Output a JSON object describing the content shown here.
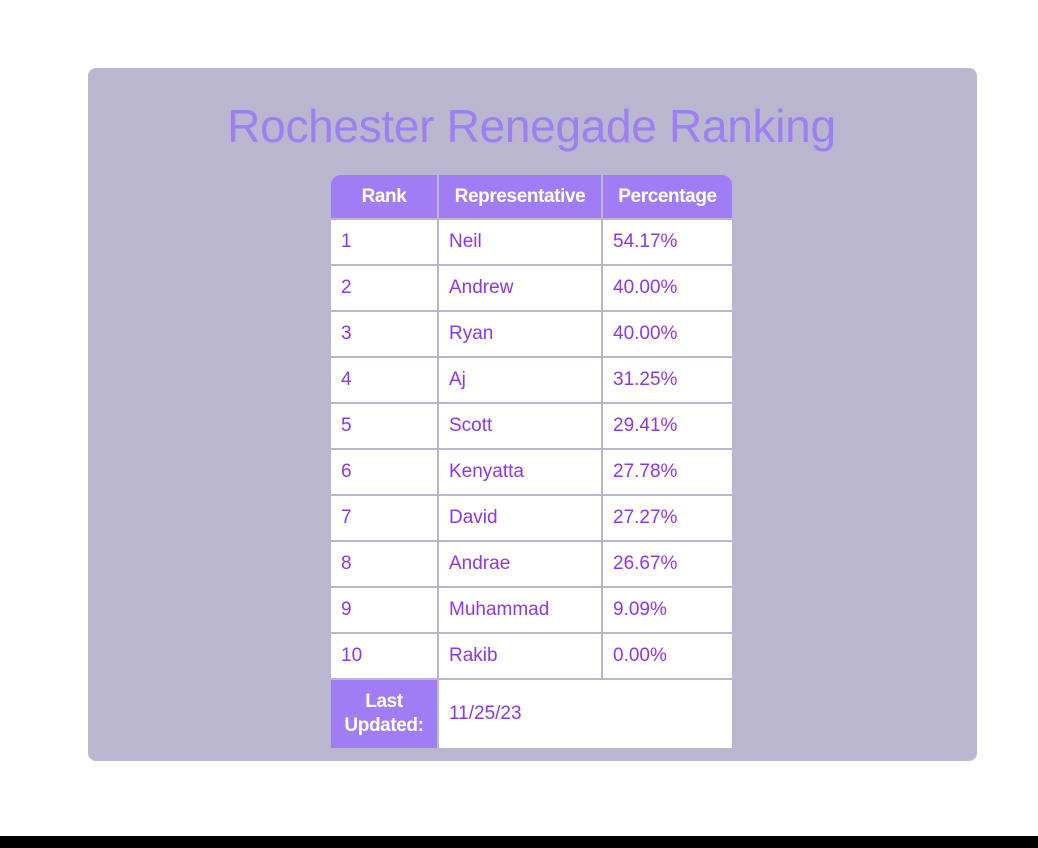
{
  "title": "Rochester Renegade Ranking",
  "table": {
    "headers": {
      "rank": "Rank",
      "representative": "Representative",
      "percentage": "Percentage"
    },
    "rows": [
      {
        "rank": "1",
        "representative": "Neil",
        "percentage": "54.17%"
      },
      {
        "rank": "2",
        "representative": "Andrew",
        "percentage": "40.00%"
      },
      {
        "rank": "3",
        "representative": "Ryan",
        "percentage": "40.00%"
      },
      {
        "rank": "4",
        "representative": "Aj",
        "percentage": "31.25%"
      },
      {
        "rank": "5",
        "representative": "Scott",
        "percentage": "29.41%"
      },
      {
        "rank": "6",
        "representative": "Kenyatta",
        "percentage": "27.78%"
      },
      {
        "rank": "7",
        "representative": "David",
        "percentage": "27.27%"
      },
      {
        "rank": "8",
        "representative": "Andrae",
        "percentage": "26.67%"
      },
      {
        "rank": "9",
        "representative": "Muhammad",
        "percentage": "9.09%"
      },
      {
        "rank": "10",
        "representative": "Rakib",
        "percentage": "0.00%"
      }
    ],
    "footer": {
      "label": "Last Updated:",
      "value": "11/25/23"
    }
  },
  "colors": {
    "card_background": "#bab6cf",
    "accent": "#a07cf5",
    "title": "#9c7ff0",
    "cell_text": "#8e35ee"
  }
}
